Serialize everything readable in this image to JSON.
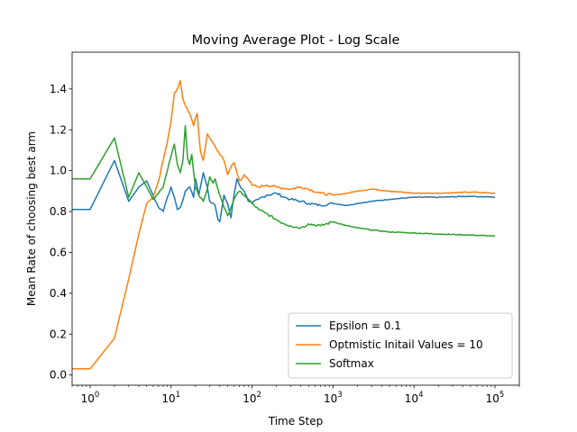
{
  "chart_data": {
    "type": "line",
    "title": "Moving Average Plot - Log Scale",
    "xlabel": "Time Step",
    "ylabel": "Mean Rate of choosing best arm",
    "x_scale": "log",
    "xlim": [
      0.6,
      200000
    ],
    "ylim": [
      -0.05,
      1.58
    ],
    "x_ticks": [
      1,
      10,
      100,
      1000,
      10000,
      100000
    ],
    "y_ticks": [
      0.0,
      0.2,
      0.4,
      0.6,
      0.8,
      1.0,
      1.2,
      1.4
    ],
    "y_tick_labels": [
      "0.0",
      "0.2",
      "0.4",
      "0.6",
      "0.8",
      "1.0",
      "1.2",
      "1.4"
    ],
    "legend_position": "lower-right",
    "series": [
      {
        "name": "Epsilon = 0.1",
        "color": "#1f77b4",
        "points": [
          [
            0.6,
            0.81
          ],
          [
            1,
            0.81
          ],
          [
            2,
            1.05
          ],
          [
            3,
            0.85
          ],
          [
            4,
            0.92
          ],
          [
            5,
            0.95
          ],
          [
            6,
            0.88
          ],
          [
            7,
            0.82
          ],
          [
            8,
            0.8
          ],
          [
            9,
            0.87
          ],
          [
            10,
            0.92
          ],
          [
            11,
            0.87
          ],
          [
            12,
            0.81
          ],
          [
            13,
            0.82
          ],
          [
            15,
            0.9
          ],
          [
            17,
            0.92
          ],
          [
            19,
            0.87
          ],
          [
            20,
            0.96
          ],
          [
            22,
            0.88
          ],
          [
            25,
            0.99
          ],
          [
            28,
            0.92
          ],
          [
            30,
            0.85
          ],
          [
            35,
            0.83
          ],
          [
            38,
            0.76
          ],
          [
            40,
            0.75
          ],
          [
            45,
            0.88
          ],
          [
            50,
            0.84
          ],
          [
            55,
            0.77
          ],
          [
            60,
            0.88
          ],
          [
            65,
            0.96
          ],
          [
            70,
            0.93
          ],
          [
            80,
            0.9
          ],
          [
            90,
            0.85
          ],
          [
            100,
            0.84
          ],
          [
            120,
            0.86
          ],
          [
            150,
            0.88
          ],
          [
            200,
            0.89
          ],
          [
            250,
            0.87
          ],
          [
            300,
            0.86
          ],
          [
            400,
            0.85
          ],
          [
            500,
            0.84
          ],
          [
            700,
            0.83
          ],
          [
            1000,
            0.84
          ],
          [
            1500,
            0.83
          ],
          [
            2000,
            0.84
          ],
          [
            3000,
            0.85
          ],
          [
            5000,
            0.86
          ],
          [
            10000,
            0.87
          ],
          [
            20000,
            0.87
          ],
          [
            50000,
            0.875
          ],
          [
            100000,
            0.87
          ]
        ]
      },
      {
        "name": "Optmistic Initail Values = 10",
        "color": "#ff7f0e",
        "points": [
          [
            0.6,
            0.03
          ],
          [
            1,
            0.03
          ],
          [
            2,
            0.18
          ],
          [
            3,
            0.47
          ],
          [
            4,
            0.69
          ],
          [
            5,
            0.84
          ],
          [
            6,
            0.87
          ],
          [
            7,
            0.95
          ],
          [
            8,
            1.05
          ],
          [
            9,
            1.14
          ],
          [
            10,
            1.24
          ],
          [
            11,
            1.38
          ],
          [
            12,
            1.4
          ],
          [
            13,
            1.44
          ],
          [
            14,
            1.35
          ],
          [
            15,
            1.32
          ],
          [
            17,
            1.28
          ],
          [
            19,
            1.22
          ],
          [
            21,
            1.28
          ],
          [
            23,
            1.1
          ],
          [
            25,
            1.05
          ],
          [
            28,
            1.18
          ],
          [
            30,
            1.16
          ],
          [
            35,
            1.12
          ],
          [
            40,
            1.08
          ],
          [
            45,
            1.05
          ],
          [
            50,
            0.98
          ],
          [
            55,
            1.02
          ],
          [
            60,
            1.04
          ],
          [
            70,
            0.95
          ],
          [
            80,
            0.98
          ],
          [
            100,
            0.93
          ],
          [
            120,
            0.92
          ],
          [
            150,
            0.93
          ],
          [
            200,
            0.92
          ],
          [
            300,
            0.91
          ],
          [
            400,
            0.92
          ],
          [
            500,
            0.91
          ],
          [
            700,
            0.89
          ],
          [
            1000,
            0.88
          ],
          [
            1500,
            0.89
          ],
          [
            2000,
            0.9
          ],
          [
            3000,
            0.91
          ],
          [
            5000,
            0.9
          ],
          [
            10000,
            0.89
          ],
          [
            20000,
            0.89
          ],
          [
            50000,
            0.895
          ],
          [
            100000,
            0.89
          ]
        ]
      },
      {
        "name": "Softmax",
        "color": "#2ca02c",
        "points": [
          [
            0.6,
            0.96
          ],
          [
            1,
            0.96
          ],
          [
            2,
            1.16
          ],
          [
            3,
            0.87
          ],
          [
            4,
            0.99
          ],
          [
            5,
            0.92
          ],
          [
            6,
            0.86
          ],
          [
            7,
            0.89
          ],
          [
            8,
            0.92
          ],
          [
            9,
            1.0
          ],
          [
            10,
            1.07
          ],
          [
            11,
            1.13
          ],
          [
            12,
            1.03
          ],
          [
            13,
            0.99
          ],
          [
            14,
            1.05
          ],
          [
            15,
            1.22
          ],
          [
            16,
            1.06
          ],
          [
            17,
            1.03
          ],
          [
            18,
            1.08
          ],
          [
            20,
            0.92
          ],
          [
            22,
            0.88
          ],
          [
            25,
            0.85
          ],
          [
            28,
            0.91
          ],
          [
            30,
            0.97
          ],
          [
            33,
            0.94
          ],
          [
            35,
            0.96
          ],
          [
            40,
            0.88
          ],
          [
            45,
            0.82
          ],
          [
            50,
            0.78
          ],
          [
            60,
            0.86
          ],
          [
            70,
            0.9
          ],
          [
            80,
            0.88
          ],
          [
            100,
            0.84
          ],
          [
            120,
            0.81
          ],
          [
            150,
            0.79
          ],
          [
            200,
            0.76
          ],
          [
            250,
            0.74
          ],
          [
            300,
            0.73
          ],
          [
            400,
            0.72
          ],
          [
            500,
            0.74
          ],
          [
            700,
            0.73
          ],
          [
            1000,
            0.75
          ],
          [
            1500,
            0.73
          ],
          [
            2000,
            0.72
          ],
          [
            3000,
            0.71
          ],
          [
            5000,
            0.7
          ],
          [
            10000,
            0.695
          ],
          [
            20000,
            0.69
          ],
          [
            50000,
            0.685
          ],
          [
            100000,
            0.68
          ]
        ]
      }
    ]
  }
}
